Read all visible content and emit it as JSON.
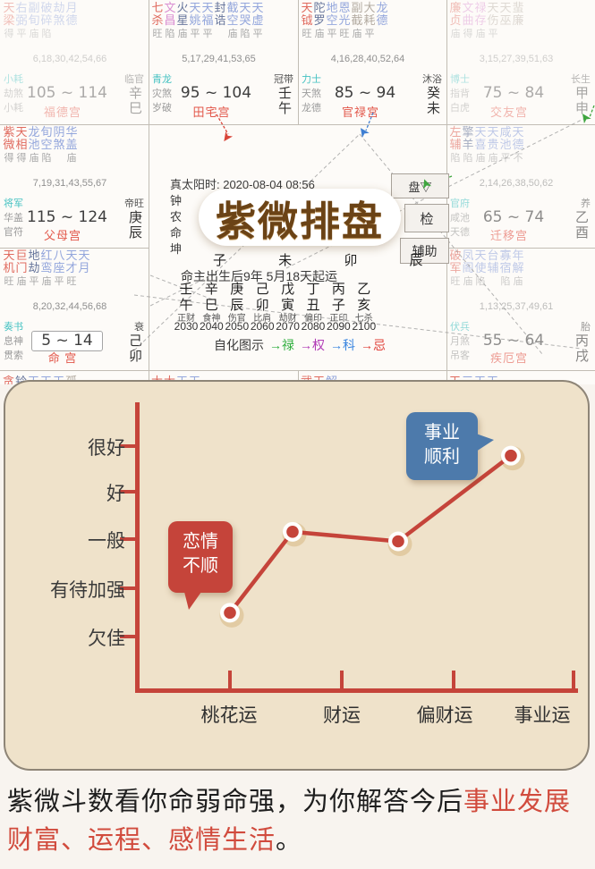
{
  "natal_chart": {
    "logo_text": "紫微排盘",
    "info_line": "真太阳时: 2020-08-04 08:56",
    "info_fragments": [
      "钟",
      "农",
      "命",
      "坤"
    ],
    "buttons": [
      "盘▽",
      "检",
      "辅助"
    ],
    "branch_row": "子 未 卯 辰",
    "qiyun_line": "命主出生后9年 5月18天起运",
    "decade_columns": [
      {
        "stem": "壬",
        "branch": "午",
        "god": "正财",
        "year": "2030"
      },
      {
        "stem": "辛",
        "branch": "巳",
        "god": "食神",
        "year": "2040"
      },
      {
        "stem": "庚",
        "branch": "辰",
        "god": "伤官",
        "year": "2050"
      },
      {
        "stem": "己",
        "branch": "卯",
        "god": "比肩",
        "year": "2060"
      },
      {
        "stem": "戊",
        "branch": "寅",
        "god": "劫财",
        "year": "2070"
      },
      {
        "stem": "丁",
        "branch": "丑",
        "god": "偏印",
        "year": "2080"
      },
      {
        "stem": "丙",
        "branch": "子",
        "god": "正印",
        "year": "2090"
      },
      {
        "stem": "乙",
        "branch": "亥",
        "god": "七杀",
        "year": "2100"
      }
    ],
    "zihua_label": "自化图示",
    "zihua_items": [
      {
        "text": "→禄",
        "color": "#2fae3e"
      },
      {
        "text": "→权",
        "color": "#b03ab5"
      },
      {
        "text": "→科",
        "color": "#3b86e0"
      },
      {
        "text": "→忌",
        "color": "#e04038"
      }
    ],
    "connector_arrows": [
      {
        "color": "#d9453a"
      },
      {
        "color": "#3f7fd2"
      },
      {
        "color": "#3fa53f"
      },
      {
        "color": "#3fa53f"
      }
    ],
    "palaces": [
      {
        "cell": "r1c1",
        "name": "福德宫",
        "stage": "临官",
        "stem": "辛",
        "branch": "巳",
        "range": "105 ~ 114",
        "nums": "6,18,30,42,54,66",
        "gods": [
          "小耗",
          "劫煞",
          "小耗"
        ],
        "bright": "得平庙陷",
        "faded": "faded",
        "stars": [
          [
            "天梁",
            "r"
          ],
          [
            "右弼",
            "b"
          ],
          [
            "副旬",
            "b"
          ],
          [
            "破碎",
            "b"
          ],
          [
            "劫煞",
            "b"
          ],
          [
            "月德",
            "b"
          ]
        ]
      },
      {
        "cell": "r1c2",
        "name": "田宅宫",
        "stage": "冠带",
        "stem": "壬",
        "branch": "午",
        "range": "95 ~ 104",
        "nums": "5,17,29,41,53,65",
        "gods": [
          "青龙",
          "灾煞",
          "岁破"
        ],
        "bright": "旺陷庙平平 庙陷平",
        "faded": "",
        "stars": [
          [
            "七杀",
            "r"
          ],
          [
            "文昌",
            "m"
          ],
          [
            "火星",
            "d"
          ],
          [
            "天姚",
            "b"
          ],
          [
            "天福",
            "b"
          ],
          [
            "封诰",
            "d"
          ],
          [
            "截空",
            "b"
          ],
          [
            "天哭",
            "b"
          ],
          [
            "天虚",
            "b"
          ]
        ]
      },
      {
        "cell": "r1c3",
        "name": "官禄宫",
        "stage": "沐浴",
        "stem": "癸",
        "branch": "未",
        "range": "85 ~ 94",
        "nums": "4,16,28,40,52,64",
        "gods": [
          "力士",
          "天煞",
          "龙德"
        ],
        "bright": "旺庙平旺庙平",
        "faded": "",
        "stars": [
          [
            "天钺",
            "r"
          ],
          [
            "陀罗",
            "d"
          ],
          [
            "地空",
            "b"
          ],
          [
            "恩光",
            "b"
          ],
          [
            "副截",
            "g"
          ],
          [
            "大耗",
            "g"
          ],
          [
            "龙德",
            "b"
          ]
        ]
      },
      {
        "cell": "r1c4",
        "name": "交友宫",
        "stage": "长生",
        "stem": "甲",
        "branch": "申",
        "range": "75 ~ 84",
        "nums": "3,15,27,39,51,63",
        "gods": [
          "博士",
          "指背",
          "白虎"
        ],
        "bright": "庙得庙平",
        "faded": "faded",
        "stars": [
          [
            "廉贞",
            "r"
          ],
          [
            "文曲",
            "m"
          ],
          [
            "禄存",
            "m"
          ],
          [
            "天伤",
            "g"
          ],
          [
            "天巫",
            "g"
          ],
          [
            "蜚廉",
            "g"
          ]
        ]
      },
      {
        "cell": "r2c1",
        "name": "父母宫",
        "stage": "帝旺",
        "stem": "庚",
        "branch": "辰",
        "range": "115 ~ 124",
        "nums": "7,19,31,43,55,67",
        "gods": [
          "将军",
          "华盖",
          "官符"
        ],
        "bright": "得得庙陷 庙",
        "faded": "",
        "stars": [
          [
            "紫微",
            "r"
          ],
          [
            "天相",
            "r"
          ],
          [
            "龙池",
            "b"
          ],
          [
            "旬空",
            "b"
          ],
          [
            "阴煞",
            "b"
          ],
          [
            "华盖",
            "b"
          ]
        ]
      },
      {
        "cell": "r2c4",
        "name": "迁移宫",
        "stage": "养",
        "stem": "乙",
        "branch": "酉",
        "range": "65 ~ 74",
        "nums": "2,14,26,38,50,62",
        "gods": [
          "官府",
          "咸池",
          "天德"
        ],
        "bright": "陷陷庙庙平不",
        "faded": "faded2",
        "stars": [
          [
            "左辅",
            "r"
          ],
          [
            "擎羊",
            "d"
          ],
          [
            "天喜",
            "b"
          ],
          [
            "天贵",
            "b"
          ],
          [
            "咸池",
            "b"
          ],
          [
            "天德",
            "b"
          ]
        ]
      },
      {
        "cell": "r3c1",
        "name": "命 宫",
        "stage": "衰",
        "stem": "己",
        "branch": "卯",
        "range": "5 ~ 14",
        "boxed": true,
        "nums": "8,20,32,44,56,68",
        "gods": [
          "奏书",
          "息神",
          "贯索"
        ],
        "bright": "旺庙平庙平旺",
        "faded": "",
        "stars": [
          [
            "天机",
            "r"
          ],
          [
            "巨门",
            "r"
          ],
          [
            "地劫",
            "d"
          ],
          [
            "红鸾",
            "b"
          ],
          [
            "八座",
            "b"
          ],
          [
            "天才",
            "b"
          ],
          [
            "天月",
            "b"
          ]
        ]
      },
      {
        "cell": "r3c4",
        "name": "疾厄宫",
        "stage": "胎",
        "stem": "丙",
        "branch": "戌",
        "range": "55 ~ 64",
        "nums": "1,13,25,37,49,61",
        "gods": [
          "伏兵",
          "月煞",
          "吊客"
        ],
        "bright": "旺庙陷 陷庙",
        "faded": "faded2",
        "stars": [
          [
            "破军",
            "r"
          ],
          [
            "凤阁",
            "b"
          ],
          [
            "天使",
            "b"
          ],
          [
            "台辅",
            "b"
          ],
          [
            "寡宿",
            "b"
          ],
          [
            "年解",
            "b"
          ]
        ]
      }
    ],
    "sliver_palaces": [
      {
        "cell": "r4c1",
        "chars": [
          [
            "贪",
            "r"
          ],
          [
            "铃",
            "d"
          ],
          [
            "天",
            "b"
          ],
          [
            "天",
            "b"
          ],
          [
            "天",
            "b"
          ],
          [
            "孤",
            "g"
          ]
        ]
      },
      {
        "cell": "r4c2",
        "chars": [
          [
            "太",
            "r"
          ],
          [
            "太",
            "r"
          ],
          [
            "天",
            "b"
          ],
          [
            "天",
            "b"
          ]
        ]
      },
      {
        "cell": "r4c3",
        "chars": [
          [
            "武",
            "r"
          ],
          [
            "天",
            "r"
          ],
          [
            "解",
            "b"
          ]
        ]
      },
      {
        "cell": "r4c4",
        "chars": [
          [
            "天",
            "r"
          ],
          [
            "三",
            "b"
          ],
          [
            "天",
            "b"
          ],
          [
            "天",
            "b"
          ]
        ]
      }
    ]
  },
  "chart_data": {
    "type": "line",
    "categories": [
      "桃花运",
      "财运",
      "偏财运",
      "事业运"
    ],
    "values": [
      1.5,
      3.2,
      3.0,
      4.8
    ],
    "y_tick_labels": [
      "欠佳",
      "有待加强",
      "一般",
      "好",
      "很好"
    ],
    "y_scale_note": "欠佳=1 有待加强=2 一般=3 好=4 很好=5",
    "ylim": [
      0.5,
      5.5
    ],
    "grid": false,
    "line_color": "#c5443a",
    "point_color": "#c5443a",
    "annotations": [
      {
        "text": "恋情不顺",
        "line1": "恋情",
        "line2": "不顺",
        "target": "桃花运",
        "color": "#c5443a"
      },
      {
        "text": "事业顺利",
        "line1": "事业",
        "line2": "顺利",
        "target": "事业运",
        "color": "#4d7aab"
      }
    ]
  },
  "footer": {
    "part1": "紫微斗数看你命弱命强，为你解答今后",
    "part2": "事业发展",
    "part3": "财富、运程、感情生活",
    "part4": "。"
  }
}
